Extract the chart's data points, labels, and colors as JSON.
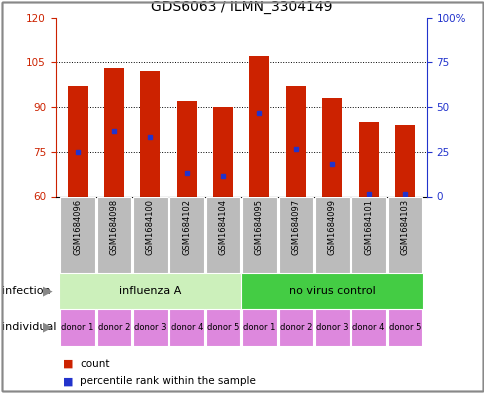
{
  "title": "GDS6063 / ILMN_3304149",
  "samples": [
    "GSM1684096",
    "GSM1684098",
    "GSM1684100",
    "GSM1684102",
    "GSM1684104",
    "GSM1684095",
    "GSM1684097",
    "GSM1684099",
    "GSM1684101",
    "GSM1684103"
  ],
  "bar_heights": [
    97,
    103,
    102,
    92,
    90,
    107,
    97,
    93,
    85,
    84
  ],
  "bar_bottom": 60,
  "blue_dots_count": [
    75,
    82,
    80,
    68,
    67,
    88,
    76,
    71,
    61,
    61
  ],
  "ylim_left": [
    60,
    120
  ],
  "ylim_right": [
    0,
    100
  ],
  "bar_color": "#cc2200",
  "dot_color": "#2233cc",
  "yticks_left": [
    60,
    75,
    90,
    105,
    120
  ],
  "yticks_right": [
    0,
    25,
    50,
    75,
    100
  ],
  "ytick_labels_right": [
    "0",
    "25",
    "50",
    "75",
    "100%"
  ],
  "infection_groups": [
    {
      "label": "influenza A",
      "start": 0,
      "end": 5,
      "color": "#ccf0bb"
    },
    {
      "label": "no virus control",
      "start": 5,
      "end": 10,
      "color": "#44cc44"
    }
  ],
  "individual_labels": [
    "donor 1",
    "donor 2",
    "donor 3",
    "donor 4",
    "donor 5",
    "donor 1",
    "donor 2",
    "donor 3",
    "donor 4",
    "donor 5"
  ],
  "individual_color": "#dd88dd",
  "sample_bg_color": "#bbbbbb",
  "infection_label": "infection",
  "individual_label": "individual",
  "legend_count_label": "count",
  "legend_pct_label": "percentile rank within the sample",
  "title_fontsize": 10,
  "axis_label_color_left": "#cc2200",
  "axis_label_color_right": "#2233cc",
  "fig_border_color": "#888888"
}
